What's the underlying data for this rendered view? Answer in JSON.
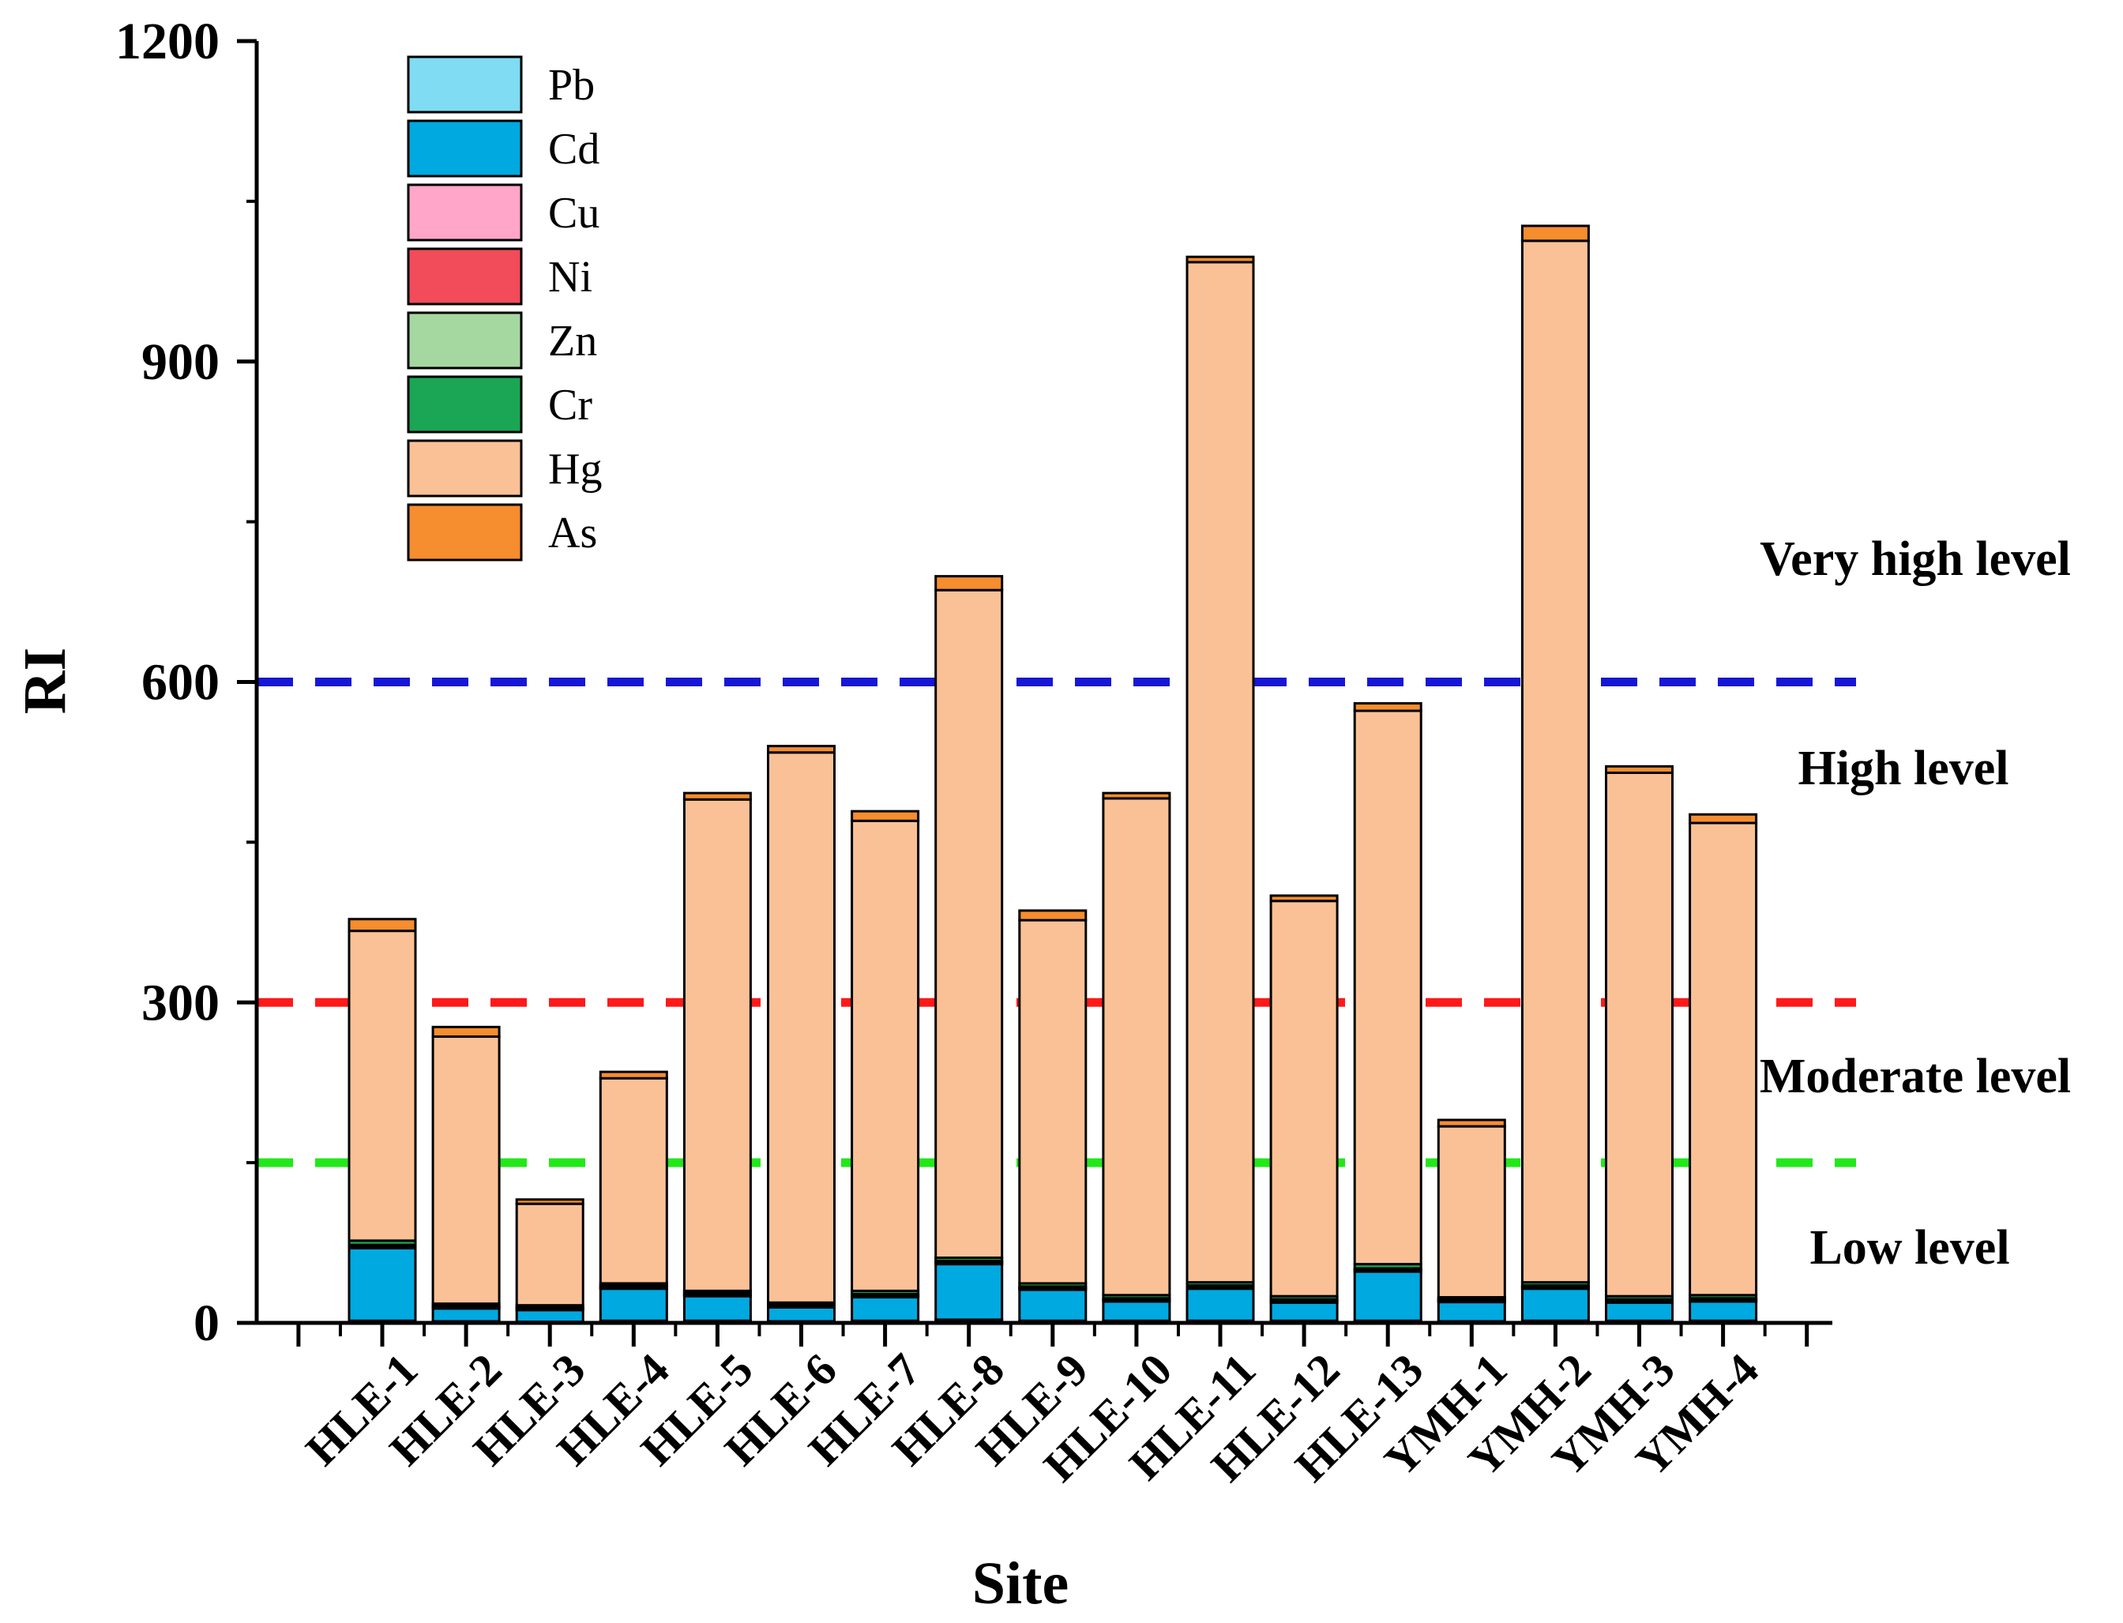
{
  "chart_data": {
    "type": "bar",
    "stacked": true,
    "title": "",
    "xlabel": "Site",
    "ylabel": "RI",
    "ylim": [
      0,
      1200
    ],
    "yticks": [
      0,
      300,
      600,
      900,
      1200
    ],
    "categories": [
      "HLE-1",
      "HLE-2",
      "HLE-3",
      "HLE-4",
      "HLE-5",
      "HLE-6",
      "HLE-7",
      "HLE-8",
      "HLE-9",
      "HLE-10",
      "HLE-11",
      "HLE-12",
      "HLE-13",
      "YMH-1",
      "YMH-2",
      "YMH-3",
      "YMH-4"
    ],
    "series": [
      {
        "name": "Pb",
        "color": "#7fdcf2",
        "values": [
          2,
          1.5,
          1,
          2,
          2,
          1.5,
          2,
          3,
          2,
          2,
          2,
          2,
          2,
          1.5,
          2,
          2,
          2
        ]
      },
      {
        "name": "Cd",
        "color": "#00a9e0",
        "values": [
          68,
          12,
          11,
          30,
          23,
          13,
          22,
          52,
          29,
          18,
          30,
          17,
          46,
          18,
          30,
          17,
          18
        ]
      },
      {
        "name": "Cu",
        "color": "#ffa6c9",
        "values": [
          1,
          1,
          1,
          1,
          1,
          1,
          1,
          1,
          1,
          1,
          1,
          1,
          1,
          1,
          1,
          1,
          1
        ]
      },
      {
        "name": "Ni",
        "color": "#f24b5a",
        "values": [
          1,
          1,
          1,
          1,
          1,
          1,
          1,
          1,
          1,
          1,
          1,
          1,
          1,
          1,
          1,
          1,
          1
        ]
      },
      {
        "name": "Zn",
        "color": "#a5d8a0",
        "values": [
          1,
          0.5,
          0.5,
          1,
          1,
          0.5,
          1,
          1,
          1,
          1,
          1,
          1,
          1,
          0.5,
          1,
          1,
          1
        ]
      },
      {
        "name": "Cr",
        "color": "#1aa654",
        "values": [
          4,
          2,
          2,
          2,
          2,
          2,
          3,
          3,
          3,
          3,
          3,
          3,
          4,
          2,
          3,
          3,
          3
        ]
      },
      {
        "name": "Hg",
        "color": "#fbc196",
        "values": [
          290,
          250,
          95,
          192,
          460,
          515,
          440,
          625,
          340,
          465,
          955,
          370,
          518,
          160,
          975,
          490,
          442
        ]
      },
      {
        "name": "As",
        "color": "#f68d2e",
        "values": [
          11,
          9,
          4,
          6,
          6,
          6,
          9,
          13,
          9,
          5,
          5,
          5,
          7,
          6,
          14,
          6,
          8
        ]
      }
    ],
    "reference_lines": [
      {
        "value": 600,
        "color": "#1616d6"
      },
      {
        "value": 300,
        "color": "#ff1a1a"
      },
      {
        "value": 150,
        "color": "#22e81a"
      }
    ],
    "level_labels": [
      "Very high level",
      "High level",
      "Moderate level",
      "Low level"
    ],
    "legend_position": "top-left"
  }
}
